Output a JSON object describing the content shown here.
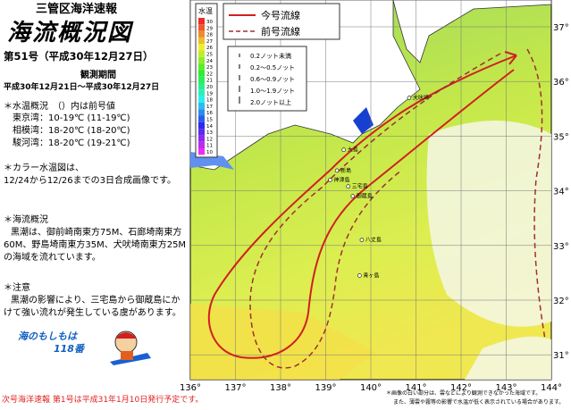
{
  "header": {
    "office": "三管区海洋速報",
    "title": "海流概況図",
    "issue": "第51号（平成30年12月27日）",
    "period_label": "観測期間",
    "period": "平成30年12月21日〜平成30年12月27日"
  },
  "water_temp": {
    "heading": "＊水温概況　（）内は前号値",
    "lines": [
      "東京湾：10-19℃ (11-19℃)",
      "相模湾：18-20℃ (18-20℃)",
      "駿河湾：18-20℃ (19-21℃)"
    ]
  },
  "color_note": {
    "heading": "＊カラー水温図は、",
    "text": "12/24から12/26までの3日合成画像です。"
  },
  "current": {
    "heading": "＊海流概況",
    "text": "黒潮は、御前崎南東方75M、石廊埼南東方60M、野島埼南東方35M、犬吠埼南東方25Mの海域を流れています。"
  },
  "caution": {
    "heading": "＊注意",
    "text": "黒潮の影響により、三宅島から御蔵島にかけて強い流れが発生している虞があります。"
  },
  "emergency": {
    "text": "海のもしもは",
    "number": "118番"
  },
  "map": {
    "legend": {
      "current": "今号流線",
      "previous": "前号流線"
    },
    "speed_legend": [
      "0.2ノット未満",
      "0.2〜0.5ノット",
      "0.6〜0.9ノット",
      "1.0〜1.9ノット",
      "2.0ノット以上"
    ],
    "colorbar": {
      "title": "水温",
      "labels": [
        "30",
        "29",
        "28",
        "27",
        "26",
        "25",
        "24",
        "23",
        "22",
        "21",
        "20",
        "19",
        "18",
        "17",
        "16",
        "15",
        "14",
        "13",
        "12",
        "11",
        "10"
      ]
    },
    "lon_labels": [
      "136°",
      "137°",
      "138°",
      "139°",
      "140°",
      "141°",
      "142°",
      "143°",
      "144°"
    ],
    "lat_labels": [
      "37°",
      "36°",
      "35°",
      "34°",
      "33°",
      "32°",
      "31°"
    ],
    "places": [
      "大島",
      "新島",
      "神津島",
      "三宅島",
      "御蔵島",
      "八丈島",
      "青ヶ島",
      "犬吠埼"
    ]
  },
  "footer": {
    "notice": "次号海洋速報 第1号は平成31年1月10日発行予定です。",
    "notes": [
      "＊画像の白い部分は、雲などにより観測できなかった海域です。",
      "また、薄雲や霧等の影響で水温が低く表示されている場合があります。"
    ]
  }
}
